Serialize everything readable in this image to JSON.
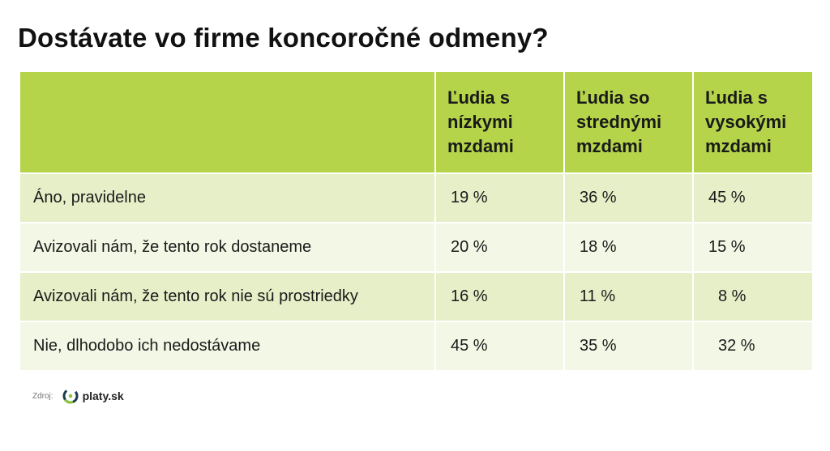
{
  "title": "Dostávate vo firme koncoročné odmeny?",
  "chart_data": {
    "type": "table",
    "columns": [
      "",
      "Ľudia s nízkymi mzdami",
      "Ľudia so strednými mzdami",
      "Ľudia s vysokými mzdami"
    ],
    "header_lines": [
      [],
      [
        "Ľudia s",
        "nízkymi",
        "mzdami"
      ],
      [
        "Ľudia so",
        "strednými",
        "mzdami"
      ],
      [
        "Ľudia s",
        "vysokými",
        "mzdami"
      ]
    ],
    "rows": [
      {
        "label": "Áno, pravidelne",
        "values": [
          "19 %",
          "36 %",
          "45 %"
        ]
      },
      {
        "label": "Avizovali nám, že tento rok dostaneme",
        "values": [
          "20 %",
          "18 %",
          "15 %"
        ]
      },
      {
        "label": "Avizovali nám, že tento rok nie sú prostriedky",
        "values": [
          "16 %",
          "11 %",
          "8 %"
        ]
      },
      {
        "label": "Nie, dlhodobo ich nedostávame",
        "values": [
          "45 %",
          "35 %",
          "32 %"
        ]
      }
    ]
  },
  "source": {
    "label": "Zdroj:",
    "logo_text": "platy.sk",
    "logo_icon": "platy-logo-icon"
  },
  "colors": {
    "header_bg": "#b5d44a",
    "row_odd_bg": "#e6efc8",
    "row_even_bg": "#f3f7e5",
    "logo_green": "#8cc63f",
    "logo_dark": "#1d3b4f"
  }
}
